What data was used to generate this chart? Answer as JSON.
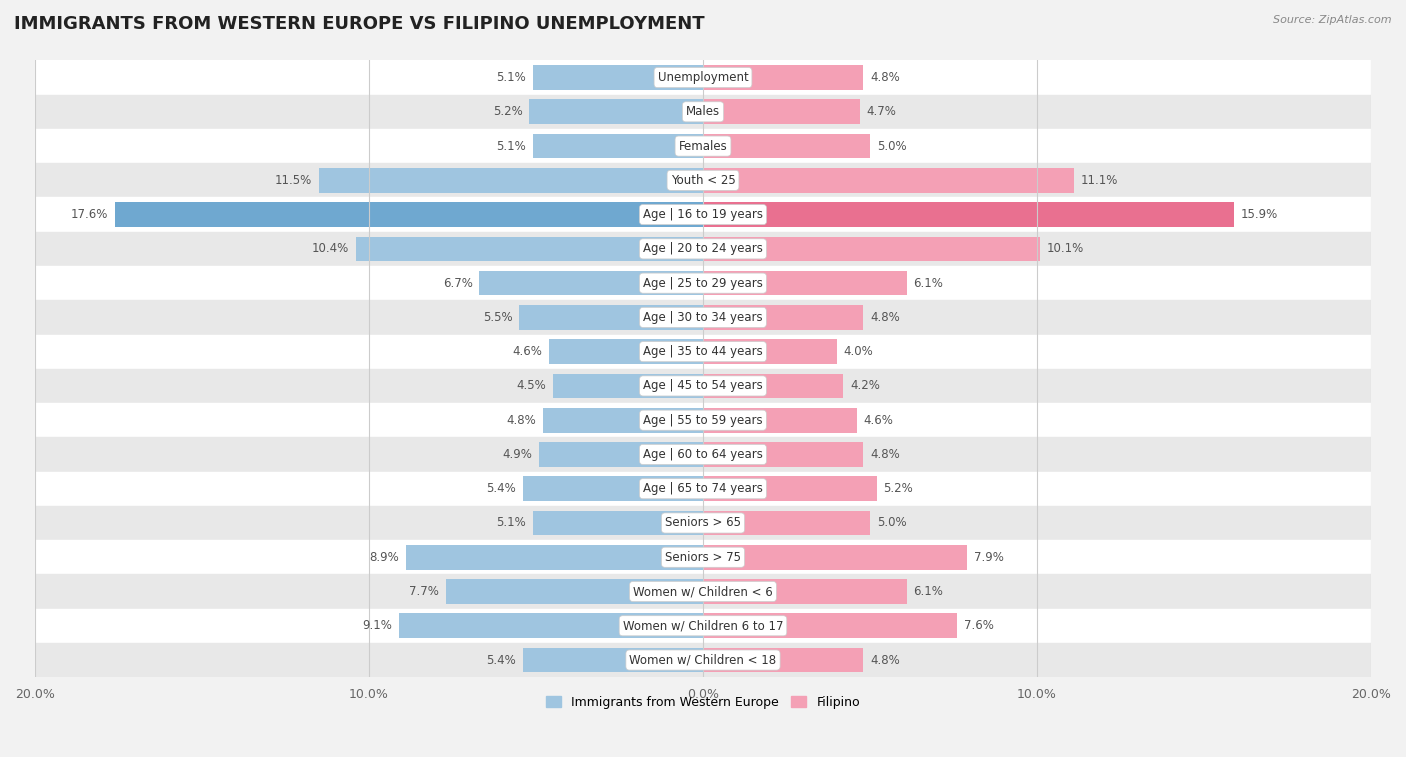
{
  "title": "IMMIGRANTS FROM WESTERN EUROPE VS FILIPINO UNEMPLOYMENT",
  "source": "Source: ZipAtlas.com",
  "categories": [
    "Unemployment",
    "Males",
    "Females",
    "Youth < 25",
    "Age | 16 to 19 years",
    "Age | 20 to 24 years",
    "Age | 25 to 29 years",
    "Age | 30 to 34 years",
    "Age | 35 to 44 years",
    "Age | 45 to 54 years",
    "Age | 55 to 59 years",
    "Age | 60 to 64 years",
    "Age | 65 to 74 years",
    "Seniors > 65",
    "Seniors > 75",
    "Women w/ Children < 6",
    "Women w/ Children 6 to 17",
    "Women w/ Children < 18"
  ],
  "western_europe": [
    5.1,
    5.2,
    5.1,
    11.5,
    17.6,
    10.4,
    6.7,
    5.5,
    4.6,
    4.5,
    4.8,
    4.9,
    5.4,
    5.1,
    8.9,
    7.7,
    9.1,
    5.4
  ],
  "filipino": [
    4.8,
    4.7,
    5.0,
    11.1,
    15.9,
    10.1,
    6.1,
    4.8,
    4.0,
    4.2,
    4.6,
    4.8,
    5.2,
    5.0,
    7.9,
    6.1,
    7.6,
    4.8
  ],
  "we_color": "#9fc5e0",
  "fil_color": "#f4a0b5",
  "we_color_highlight": "#6fa8d0",
  "fil_color_highlight": "#e97090",
  "bg_color": "#f2f2f2",
  "row_color_odd": "#ffffff",
  "row_color_even": "#e8e8e8",
  "xlim": 20.0,
  "bar_height": 0.72,
  "title_fontsize": 13,
  "label_fontsize": 8.5,
  "tick_fontsize": 9,
  "value_fontsize": 8.5
}
